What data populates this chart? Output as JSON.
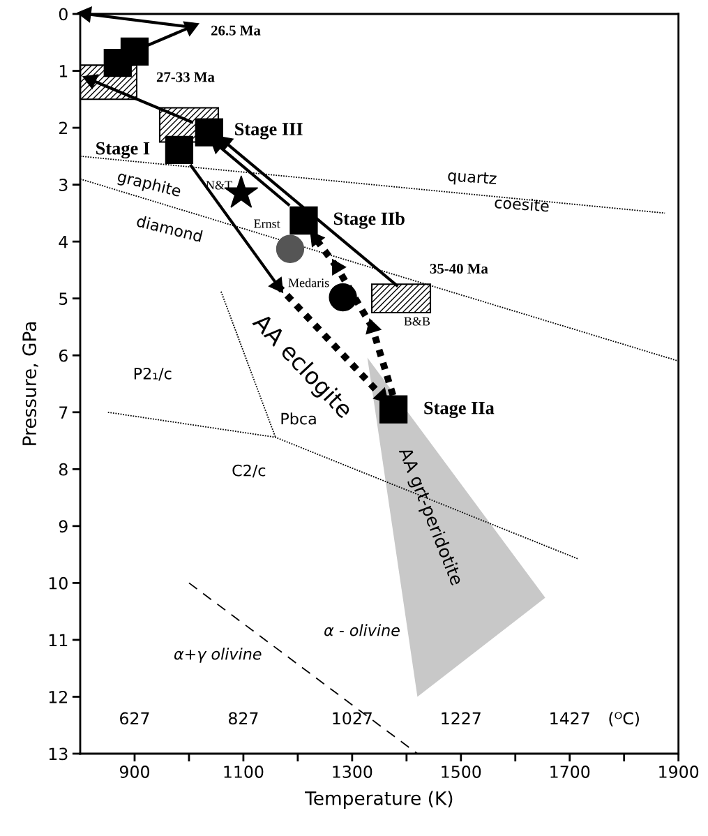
{
  "chart_data": {
    "type": "scatter",
    "xlabel": "Temperature (K)",
    "ylabel": "Pressure, GPa",
    "xlim": [
      800,
      1900
    ],
    "ylim": [
      13,
      0
    ],
    "xticks": [
      900,
      {
        "value": 1000,
        "label": null
      },
      1100,
      {
        "value": 1200,
        "label": null
      },
      1300,
      {
        "value": 1400,
        "label": null
      },
      1500,
      {
        "value": 1600,
        "label": null
      },
      1700,
      {
        "value": 1800,
        "label": null
      },
      1900
    ],
    "yticks": [
      0,
      1,
      2,
      3,
      4,
      5,
      6,
      7,
      8,
      9,
      10,
      11,
      12,
      13
    ],
    "x2lim": [
      527,
      1627
    ],
    "x2ticks": [
      627,
      827,
      1027,
      1227,
      1427,
      {
        "value": 1527,
        "label": "(ᴼC)"
      }
    ],
    "grid": false,
    "legend": false,
    "series": [
      {
        "type": "area",
        "name": "AA grt-peridotite",
        "color": "#c8c8c8",
        "x": [
          1328,
          1420,
          1655
        ],
        "values": [
          6.04,
          12.0,
          10.26
        ]
      },
      {
        "type": "line",
        "color": "#000000",
        "line_style": "dotted",
        "x": [
          800,
          1875
        ],
        "values": [
          2.5,
          3.5
        ]
      },
      {
        "type": "line",
        "color": "#000000",
        "line_style": "dotted",
        "x": [
          800,
          1900
        ],
        "values": [
          2.9,
          6.1
        ]
      },
      {
        "type": "line",
        "color": "#000000",
        "line_style": "dotted",
        "x": [
          1059,
          1159
        ],
        "values": [
          4.88,
          7.44
        ]
      },
      {
        "type": "line",
        "color": "#000000",
        "line_style": "dotted",
        "x": [
          851,
          1159,
          1716
        ],
        "values": [
          7.0,
          7.44,
          9.58
        ]
      },
      {
        "type": "line",
        "color": "#000000",
        "line_style": "dashed",
        "x": [
          1000,
          1420
        ],
        "values": [
          10.0,
          13.0
        ]
      },
      {
        "type": "line",
        "color": "#000000",
        "line_style": "solid",
        "marker": "triangle",
        "x": [
          1004,
          1163
        ],
        "values": [
          2.67,
          4.77
        ]
      },
      {
        "type": "line",
        "name": "AA eclogite",
        "color": "#000000",
        "line_style": "dotted",
        "marker": "triangle",
        "x": [
          1163,
          1355
        ],
        "values": [
          4.77,
          6.72
        ]
      },
      {
        "type": "line",
        "color": "#000000",
        "line_style": "dotted",
        "marker": "triangle",
        "x": [
          1375,
          1337
        ],
        "values": [
          6.7,
          5.51
        ]
      },
      {
        "type": "line",
        "color": "#000000",
        "line_style": "dotted",
        "marker": "triangle",
        "x": [
          1337,
          1272
        ],
        "values": [
          5.51,
          4.45
        ]
      },
      {
        "type": "line",
        "color": "#000000",
        "line_style": "dotted",
        "marker": "triangle",
        "x": [
          1272,
          1233
        ],
        "values": [
          4.45,
          3.95
        ]
      },
      {
        "type": "line",
        "color": "#000000",
        "line_style": "solid",
        "marker": "triangle",
        "x": [
          1382,
          1066
        ],
        "values": [
          4.77,
          2.25
        ]
      },
      {
        "type": "line",
        "color": "#000000",
        "line_style": "solid",
        "marker": "triangle",
        "x": [
          1183,
          1052
        ],
        "values": [
          3.35,
          2.3
        ]
      },
      {
        "type": "line",
        "color": "#000000",
        "line_style": "solid",
        "marker": "triangle",
        "x": [
          1005,
          820
        ],
        "values": [
          1.9,
          1.16
        ]
      },
      {
        "type": "line",
        "color": "#000000",
        "line_style": "solid",
        "marker": "triangle",
        "x": [
          927,
          1003
        ],
        "values": [
          0.54,
          0.23
        ]
      },
      {
        "type": "line",
        "color": "#000000",
        "line_style": "solid",
        "marker": "triangle",
        "x": [
          1003,
          811
        ],
        "values": [
          0.23,
          0.0
        ]
      },
      {
        "type": "bar",
        "color": "#000000",
        "x": [
          850,
          1000,
          1390
        ],
        "base": [
          0.9,
          1.65,
          4.75
        ],
        "values": [
          0.6,
          0.6,
          0.5
        ]
      },
      {
        "color": "#000000",
        "marker": "square",
        "x": [
          982,
          1037,
          1211,
          1376,
          869,
          900
        ],
        "values": [
          2.39,
          2.08,
          3.63,
          6.95,
          0.86,
          0.66
        ]
      },
      {
        "color": "#555555",
        "marker": "circle",
        "x": [
          1186
        ],
        "values": [
          4.13
        ]
      },
      {
        "color": "#000000",
        "marker": "circle",
        "x": [
          1283
        ],
        "values": [
          4.98
        ]
      },
      {
        "color": "#000000",
        "marker": "star",
        "x": [
          1096
        ],
        "values": [
          3.15
        ]
      }
    ],
    "annotations": [
      "26.5 Ma",
      "27-33 Ma",
      "Stage III",
      "Stage I",
      "N&T",
      "Ernst",
      "Stage IIb",
      "35-40 Ma",
      "Medaris",
      "B&B",
      "Stage IIa",
      "quartz",
      "coesite",
      "graphite",
      "diamond",
      "P2₁/c",
      "Pbca",
      "C2/c",
      "α - olivine",
      "α+γ olivine"
    ]
  }
}
